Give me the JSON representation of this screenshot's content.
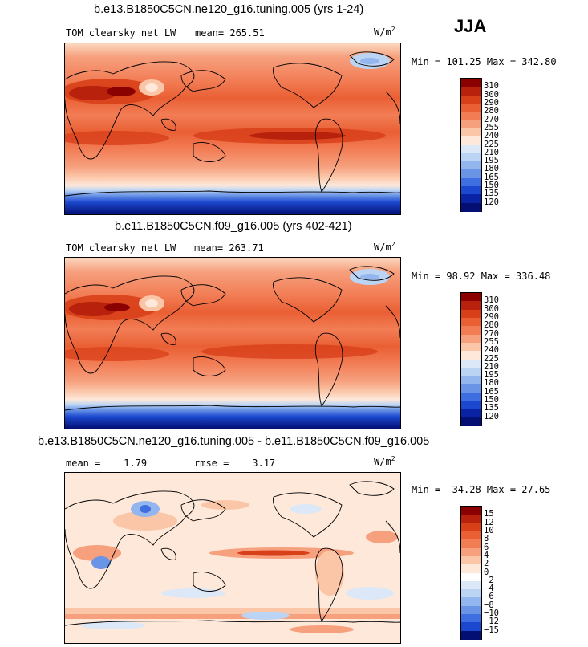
{
  "season": "JJA",
  "panels": [
    {
      "title": "b.e13.B1850C5CN.ne120_g16.tuning.005 (yrs 1-24)",
      "variable": "TOM clearsky net LW",
      "mean": "mean= 265.51",
      "units": "W/m",
      "units_exp": "2",
      "minmax": "Min = 101.25 Max = 342.80",
      "levels": [
        "310",
        "300",
        "290",
        "280",
        "270",
        "255",
        "240",
        "225",
        "210",
        "195",
        "180",
        "165",
        "150",
        "135",
        "120"
      ],
      "colors": [
        "#8b0000",
        "#b8220c",
        "#d8401a",
        "#ea5f34",
        "#f27d55",
        "#f6a07e",
        "#fbc6a8",
        "#fde8da",
        "#dce8f8",
        "#bcd4f4",
        "#93b6ee",
        "#6a94e6",
        "#3f6ee0",
        "#1c48cf",
        "#0a23a4",
        "#040f74"
      ]
    },
    {
      "title": "b.e11.B1850C5CN.f09_g16.005 (yrs 402-421)",
      "variable": "TOM clearsky net LW",
      "mean": "mean= 263.71",
      "units": "W/m",
      "units_exp": "2",
      "minmax": "Min =  98.92 Max = 336.48",
      "levels": [
        "310",
        "300",
        "290",
        "280",
        "270",
        "255",
        "240",
        "225",
        "210",
        "195",
        "180",
        "165",
        "150",
        "135",
        "120"
      ],
      "colors": [
        "#8b0000",
        "#b8220c",
        "#d8401a",
        "#ea5f34",
        "#f27d55",
        "#f6a07e",
        "#fbc6a8",
        "#fde8da",
        "#dce8f8",
        "#bcd4f4",
        "#93b6ee",
        "#6a94e6",
        "#3f6ee0",
        "#1c48cf",
        "#0a23a4",
        "#040f74"
      ]
    },
    {
      "title": "b.e13.B1850C5CN.ne120_g16.tuning.005 - b.e11.B1850C5CN.f09_g16.005",
      "mean": "mean =    1.79",
      "rmse": "rmse =    3.17",
      "units": "W/m",
      "units_exp": "2",
      "minmax": "Min = -34.28 Max =  27.65",
      "levels": [
        "15",
        "12",
        "10",
        "8",
        "6",
        "4",
        "2",
        "0",
        "−2",
        "−4",
        "−6",
        "−8",
        "−10",
        "−12",
        "−15"
      ],
      "colors": [
        "#8b0000",
        "#b8220c",
        "#d8401a",
        "#ea5f34",
        "#f27d55",
        "#f6a07e",
        "#fbc6a8",
        "#fde8da",
        "#ffffff",
        "#dce8f8",
        "#bcd4f4",
        "#93b6ee",
        "#6a94e6",
        "#3f6ee0",
        "#1c48cf",
        "#040f74"
      ]
    }
  ]
}
